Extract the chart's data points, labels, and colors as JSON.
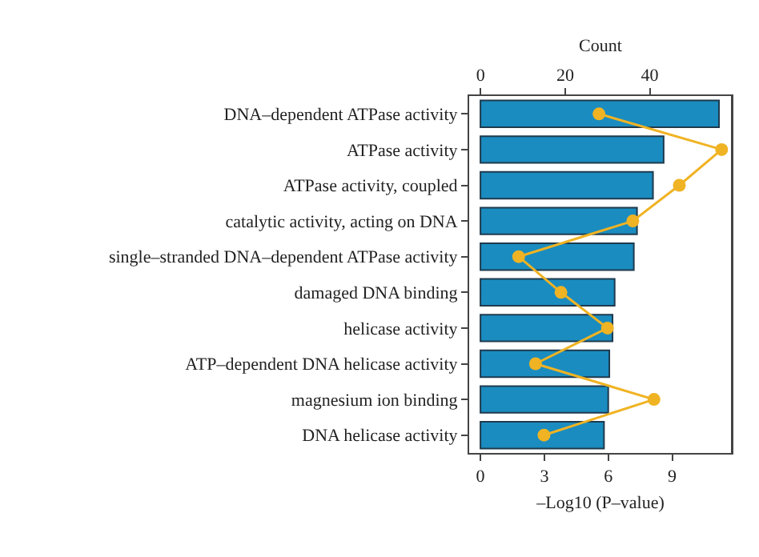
{
  "chart_data": {
    "type": "bar",
    "orientation": "horizontal",
    "categories": [
      "DNA–dependent ATPase activity",
      "ATPase activity",
      "ATPase activity, coupled",
      "catalytic activity, acting on DNA",
      "single–stranded DNA–dependent ATPase activity",
      "damaged DNA binding",
      "helicase activity",
      "ATP–dependent DNA helicase activity",
      "magnesium ion binding",
      "DNA helicase activity"
    ],
    "series": [
      {
        "color": "#1a8cc0",
        "values": [
          11.2,
          8.6,
          8.1,
          7.35,
          7.2,
          6.3,
          6.2,
          6.05,
          6.0,
          5.8
        ]
      },
      {
        "type": "line",
        "axis": "x2",
        "color": "#f0b323",
        "values": [
          28,
          57,
          47,
          36,
          9,
          19,
          30,
          13,
          41,
          15
        ]
      }
    ],
    "xlabel": "–Log10 (P–value)",
    "x2label": "Count",
    "xlim": [
      -0.53,
      11.8
    ],
    "xticks": [
      0,
      3,
      6,
      9
    ],
    "x2lim": [
      -2.7,
      59.4
    ],
    "x2ticks": [
      0,
      20,
      40
    ],
    "marker": "circle",
    "line_style": "solid"
  }
}
